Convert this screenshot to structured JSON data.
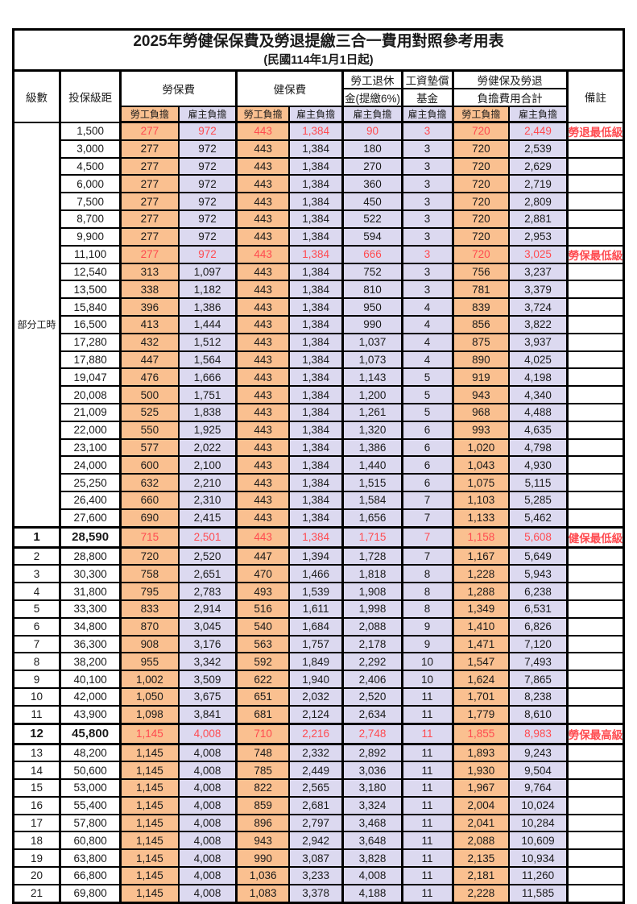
{
  "page": {
    "title": "2025年勞健保保費及勞退提繳三合一費用對照參考用表",
    "subtitle": "(民國114年1月1日起)"
  },
  "colors": {
    "employee_column_bg": "#FAC090",
    "employer_column_bg": "#DCD9F0",
    "highlight_text": "#FF4B50",
    "border": "#000000"
  },
  "table": {
    "headers": {
      "level": "級數",
      "salary": "投保級距",
      "labor": "勞保費",
      "health": "健保費",
      "pension_line1": "勞工退休",
      "pension_line2": "金(提繳6%)",
      "fund_line1": "工資墊償",
      "fund_line2": "基金",
      "total_line1": "勞健保及勞退",
      "total_line2": "負擔費用合計",
      "note": "備註",
      "employee": "勞工負擔",
      "employer": "雇主負擔"
    },
    "part_time_label": "部分工時",
    "rows": [
      {
        "level": "",
        "salary": "1,500",
        "labor_emp": "277",
        "labor_er": "972",
        "health_emp": "443",
        "health_er": "1,384",
        "pension_er": "90",
        "fund_er": "3",
        "total_emp": "720",
        "total_er": "2,449",
        "note": "勞退最低級距",
        "style": "red"
      },
      {
        "level": "",
        "salary": "3,000",
        "labor_emp": "277",
        "labor_er": "972",
        "health_emp": "443",
        "health_er": "1,384",
        "pension_er": "180",
        "fund_er": "3",
        "total_emp": "720",
        "total_er": "2,539",
        "note": "",
        "style": ""
      },
      {
        "level": "",
        "salary": "4,500",
        "labor_emp": "277",
        "labor_er": "972",
        "health_emp": "443",
        "health_er": "1,384",
        "pension_er": "270",
        "fund_er": "3",
        "total_emp": "720",
        "total_er": "2,629",
        "note": "",
        "style": ""
      },
      {
        "level": "",
        "salary": "6,000",
        "labor_emp": "277",
        "labor_er": "972",
        "health_emp": "443",
        "health_er": "1,384",
        "pension_er": "360",
        "fund_er": "3",
        "total_emp": "720",
        "total_er": "2,719",
        "note": "",
        "style": ""
      },
      {
        "level": "",
        "salary": "7,500",
        "labor_emp": "277",
        "labor_er": "972",
        "health_emp": "443",
        "health_er": "1,384",
        "pension_er": "450",
        "fund_er": "3",
        "total_emp": "720",
        "total_er": "2,809",
        "note": "",
        "style": ""
      },
      {
        "level": "",
        "salary": "8,700",
        "labor_emp": "277",
        "labor_er": "972",
        "health_emp": "443",
        "health_er": "1,384",
        "pension_er": "522",
        "fund_er": "3",
        "total_emp": "720",
        "total_er": "2,881",
        "note": "",
        "style": ""
      },
      {
        "level": "",
        "salary": "9,900",
        "labor_emp": "277",
        "labor_er": "972",
        "health_emp": "443",
        "health_er": "1,384",
        "pension_er": "594",
        "fund_er": "3",
        "total_emp": "720",
        "total_er": "2,953",
        "note": "",
        "style": ""
      },
      {
        "level": "",
        "salary": "11,100",
        "labor_emp": "277",
        "labor_er": "972",
        "health_emp": "443",
        "health_er": "1,384",
        "pension_er": "666",
        "fund_er": "3",
        "total_emp": "720",
        "total_er": "3,025",
        "note": "勞保最低級距",
        "style": "red"
      },
      {
        "level": "",
        "salary": "12,540",
        "labor_emp": "313",
        "labor_er": "1,097",
        "health_emp": "443",
        "health_er": "1,384",
        "pension_er": "752",
        "fund_er": "3",
        "total_emp": "756",
        "total_er": "3,237",
        "note": "",
        "style": ""
      },
      {
        "level": "",
        "salary": "13,500",
        "labor_emp": "338",
        "labor_er": "1,182",
        "health_emp": "443",
        "health_er": "1,384",
        "pension_er": "810",
        "fund_er": "3",
        "total_emp": "781",
        "total_er": "3,379",
        "note": "",
        "style": ""
      },
      {
        "level": "",
        "salary": "15,840",
        "labor_emp": "396",
        "labor_er": "1,386",
        "health_emp": "443",
        "health_er": "1,384",
        "pension_er": "950",
        "fund_er": "4",
        "total_emp": "839",
        "total_er": "3,724",
        "note": "",
        "style": ""
      },
      {
        "level": "",
        "salary": "16,500",
        "labor_emp": "413",
        "labor_er": "1,444",
        "health_emp": "443",
        "health_er": "1,384",
        "pension_er": "990",
        "fund_er": "4",
        "total_emp": "856",
        "total_er": "3,822",
        "note": "",
        "style": ""
      },
      {
        "level": "",
        "salary": "17,280",
        "labor_emp": "432",
        "labor_er": "1,512",
        "health_emp": "443",
        "health_er": "1,384",
        "pension_er": "1,037",
        "fund_er": "4",
        "total_emp": "875",
        "total_er": "3,937",
        "note": "",
        "style": ""
      },
      {
        "level": "",
        "salary": "17,880",
        "labor_emp": "447",
        "labor_er": "1,564",
        "health_emp": "443",
        "health_er": "1,384",
        "pension_er": "1,073",
        "fund_er": "4",
        "total_emp": "890",
        "total_er": "4,025",
        "note": "",
        "style": ""
      },
      {
        "level": "",
        "salary": "19,047",
        "labor_emp": "476",
        "labor_er": "1,666",
        "health_emp": "443",
        "health_er": "1,384",
        "pension_er": "1,143",
        "fund_er": "5",
        "total_emp": "919",
        "total_er": "4,198",
        "note": "",
        "style": ""
      },
      {
        "level": "",
        "salary": "20,008",
        "labor_emp": "500",
        "labor_er": "1,751",
        "health_emp": "443",
        "health_er": "1,384",
        "pension_er": "1,200",
        "fund_er": "5",
        "total_emp": "943",
        "total_er": "4,340",
        "note": "",
        "style": ""
      },
      {
        "level": "",
        "salary": "21,009",
        "labor_emp": "525",
        "labor_er": "1,838",
        "health_emp": "443",
        "health_er": "1,384",
        "pension_er": "1,261",
        "fund_er": "5",
        "total_emp": "968",
        "total_er": "4,488",
        "note": "",
        "style": ""
      },
      {
        "level": "",
        "salary": "22,000",
        "labor_emp": "550",
        "labor_er": "1,925",
        "health_emp": "443",
        "health_er": "1,384",
        "pension_er": "1,320",
        "fund_er": "6",
        "total_emp": "993",
        "total_er": "4,635",
        "note": "",
        "style": ""
      },
      {
        "level": "",
        "salary": "23,100",
        "labor_emp": "577",
        "labor_er": "2,022",
        "health_emp": "443",
        "health_er": "1,384",
        "pension_er": "1,386",
        "fund_er": "6",
        "total_emp": "1,020",
        "total_er": "4,798",
        "note": "",
        "style": ""
      },
      {
        "level": "",
        "salary": "24,000",
        "labor_emp": "600",
        "labor_er": "2,100",
        "health_emp": "443",
        "health_er": "1,384",
        "pension_er": "1,440",
        "fund_er": "6",
        "total_emp": "1,043",
        "total_er": "4,930",
        "note": "",
        "style": ""
      },
      {
        "level": "",
        "salary": "25,250",
        "labor_emp": "632",
        "labor_er": "2,210",
        "health_emp": "443",
        "health_er": "1,384",
        "pension_er": "1,515",
        "fund_er": "6",
        "total_emp": "1,075",
        "total_er": "5,115",
        "note": "",
        "style": ""
      },
      {
        "level": "",
        "salary": "26,400",
        "labor_emp": "660",
        "labor_er": "2,310",
        "health_emp": "443",
        "health_er": "1,384",
        "pension_er": "1,584",
        "fund_er": "7",
        "total_emp": "1,103",
        "total_er": "5,285",
        "note": "",
        "style": ""
      },
      {
        "level": "",
        "salary": "27,600",
        "labor_emp": "690",
        "labor_er": "2,415",
        "health_emp": "443",
        "health_er": "1,384",
        "pension_er": "1,656",
        "fund_er": "7",
        "total_emp": "1,133",
        "total_er": "5,462",
        "note": "",
        "style": ""
      },
      {
        "level": "1",
        "salary": "28,590",
        "labor_emp": "715",
        "labor_er": "2,501",
        "health_emp": "443",
        "health_er": "1,384",
        "pension_er": "1,715",
        "fund_er": "7",
        "total_emp": "1,158",
        "total_er": "5,608",
        "note": "健保最低級距",
        "style": "milestone"
      },
      {
        "level": "2",
        "salary": "28,800",
        "labor_emp": "720",
        "labor_er": "2,520",
        "health_emp": "447",
        "health_er": "1,394",
        "pension_er": "1,728",
        "fund_er": "7",
        "total_emp": "1,167",
        "total_er": "5,649",
        "note": "",
        "style": ""
      },
      {
        "level": "3",
        "salary": "30,300",
        "labor_emp": "758",
        "labor_er": "2,651",
        "health_emp": "470",
        "health_er": "1,466",
        "pension_er": "1,818",
        "fund_er": "8",
        "total_emp": "1,228",
        "total_er": "5,943",
        "note": "",
        "style": ""
      },
      {
        "level": "4",
        "salary": "31,800",
        "labor_emp": "795",
        "labor_er": "2,783",
        "health_emp": "493",
        "health_er": "1,539",
        "pension_er": "1,908",
        "fund_er": "8",
        "total_emp": "1,288",
        "total_er": "6,238",
        "note": "",
        "style": ""
      },
      {
        "level": "5",
        "salary": "33,300",
        "labor_emp": "833",
        "labor_er": "2,914",
        "health_emp": "516",
        "health_er": "1,611",
        "pension_er": "1,998",
        "fund_er": "8",
        "total_emp": "1,349",
        "total_er": "6,531",
        "note": "",
        "style": ""
      },
      {
        "level": "6",
        "salary": "34,800",
        "labor_emp": "870",
        "labor_er": "3,045",
        "health_emp": "540",
        "health_er": "1,684",
        "pension_er": "2,088",
        "fund_er": "9",
        "total_emp": "1,410",
        "total_er": "6,826",
        "note": "",
        "style": ""
      },
      {
        "level": "7",
        "salary": "36,300",
        "labor_emp": "908",
        "labor_er": "3,176",
        "health_emp": "563",
        "health_er": "1,757",
        "pension_er": "2,178",
        "fund_er": "9",
        "total_emp": "1,471",
        "total_er": "7,120",
        "note": "",
        "style": ""
      },
      {
        "level": "8",
        "salary": "38,200",
        "labor_emp": "955",
        "labor_er": "3,342",
        "health_emp": "592",
        "health_er": "1,849",
        "pension_er": "2,292",
        "fund_er": "10",
        "total_emp": "1,547",
        "total_er": "7,493",
        "note": "",
        "style": ""
      },
      {
        "level": "9",
        "salary": "40,100",
        "labor_emp": "1,002",
        "labor_er": "3,509",
        "health_emp": "622",
        "health_er": "1,940",
        "pension_er": "2,406",
        "fund_er": "10",
        "total_emp": "1,624",
        "total_er": "7,865",
        "note": "",
        "style": ""
      },
      {
        "level": "10",
        "salary": "42,000",
        "labor_emp": "1,050",
        "labor_er": "3,675",
        "health_emp": "651",
        "health_er": "2,032",
        "pension_er": "2,520",
        "fund_er": "11",
        "total_emp": "1,701",
        "total_er": "8,238",
        "note": "",
        "style": ""
      },
      {
        "level": "11",
        "salary": "43,900",
        "labor_emp": "1,098",
        "labor_er": "3,841",
        "health_emp": "681",
        "health_er": "2,124",
        "pension_er": "2,634",
        "fund_er": "11",
        "total_emp": "1,779",
        "total_er": "8,610",
        "note": "",
        "style": ""
      },
      {
        "level": "12",
        "salary": "45,800",
        "labor_emp": "1,145",
        "labor_er": "4,008",
        "health_emp": "710",
        "health_er": "2,216",
        "pension_er": "2,748",
        "fund_er": "11",
        "total_emp": "1,855",
        "total_er": "8,983",
        "note": "勞保最高級距",
        "style": "milestone"
      },
      {
        "level": "13",
        "salary": "48,200",
        "labor_emp": "1,145",
        "labor_er": "4,008",
        "health_emp": "748",
        "health_er": "2,332",
        "pension_er": "2,892",
        "fund_er": "11",
        "total_emp": "1,893",
        "total_er": "9,243",
        "note": "",
        "style": ""
      },
      {
        "level": "14",
        "salary": "50,600",
        "labor_emp": "1,145",
        "labor_er": "4,008",
        "health_emp": "785",
        "health_er": "2,449",
        "pension_er": "3,036",
        "fund_er": "11",
        "total_emp": "1,930",
        "total_er": "9,504",
        "note": "",
        "style": ""
      },
      {
        "level": "15",
        "salary": "53,000",
        "labor_emp": "1,145",
        "labor_er": "4,008",
        "health_emp": "822",
        "health_er": "2,565",
        "pension_er": "3,180",
        "fund_er": "11",
        "total_emp": "1,967",
        "total_er": "9,764",
        "note": "",
        "style": ""
      },
      {
        "level": "16",
        "salary": "55,400",
        "labor_emp": "1,145",
        "labor_er": "4,008",
        "health_emp": "859",
        "health_er": "2,681",
        "pension_er": "3,324",
        "fund_er": "11",
        "total_emp": "2,004",
        "total_er": "10,024",
        "note": "",
        "style": ""
      },
      {
        "level": "17",
        "salary": "57,800",
        "labor_emp": "1,145",
        "labor_er": "4,008",
        "health_emp": "896",
        "health_er": "2,797",
        "pension_er": "3,468",
        "fund_er": "11",
        "total_emp": "2,041",
        "total_er": "10,284",
        "note": "",
        "style": ""
      },
      {
        "level": "18",
        "salary": "60,800",
        "labor_emp": "1,145",
        "labor_er": "4,008",
        "health_emp": "943",
        "health_er": "2,942",
        "pension_er": "3,648",
        "fund_er": "11",
        "total_emp": "2,088",
        "total_er": "10,609",
        "note": "",
        "style": ""
      },
      {
        "level": "19",
        "salary": "63,800",
        "labor_emp": "1,145",
        "labor_er": "4,008",
        "health_emp": "990",
        "health_er": "3,087",
        "pension_er": "3,828",
        "fund_er": "11",
        "total_emp": "2,135",
        "total_er": "10,934",
        "note": "",
        "style": ""
      },
      {
        "level": "20",
        "salary": "66,800",
        "labor_emp": "1,145",
        "labor_er": "4,008",
        "health_emp": "1,036",
        "health_er": "3,233",
        "pension_er": "4,008",
        "fund_er": "11",
        "total_emp": "2,181",
        "total_er": "11,260",
        "note": "",
        "style": ""
      },
      {
        "level": "21",
        "salary": "69,800",
        "labor_emp": "1,145",
        "labor_er": "4,008",
        "health_emp": "1,083",
        "health_er": "3,378",
        "pension_er": "4,188",
        "fund_er": "11",
        "total_emp": "2,228",
        "total_er": "11,585",
        "note": "",
        "style": ""
      }
    ]
  }
}
